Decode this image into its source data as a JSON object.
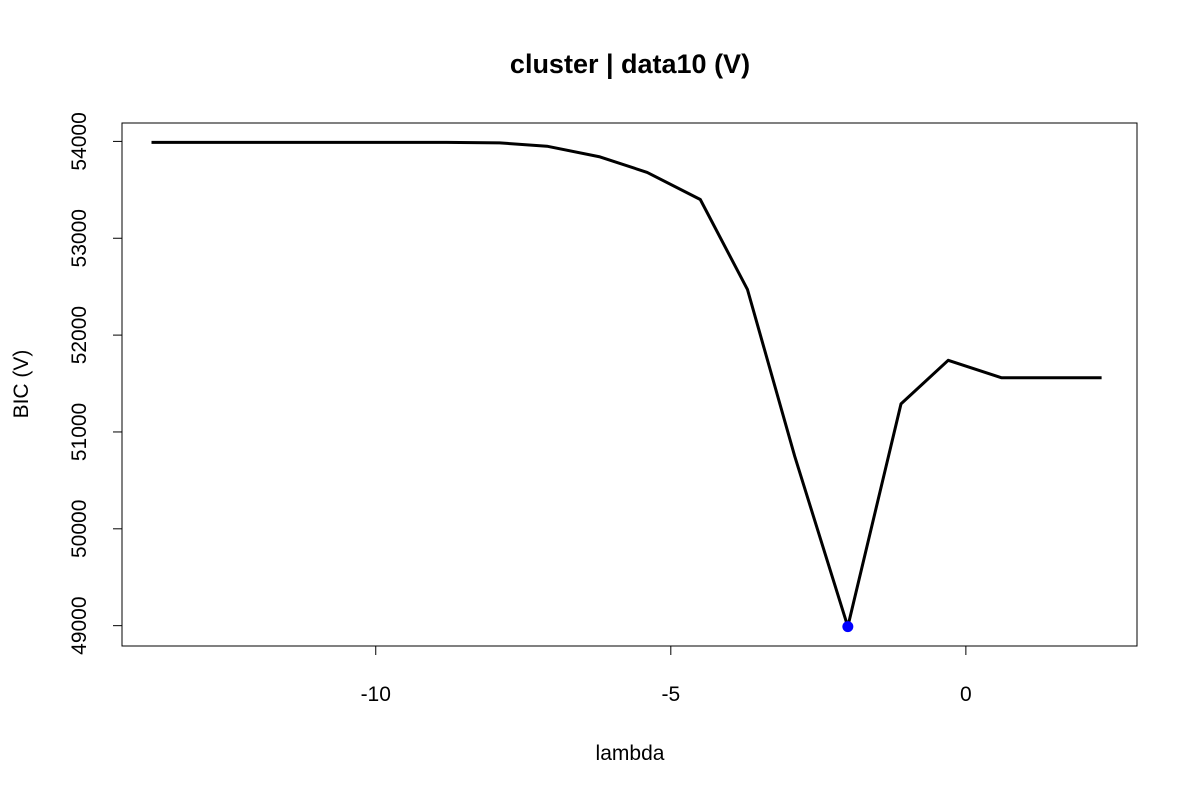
{
  "chart_data": {
    "type": "line",
    "title": "cluster | data10 (V)",
    "xlabel": "lambda",
    "ylabel": "BIC (V)",
    "xlim": [
      -14.3,
      2.9
    ],
    "ylim": [
      48790,
      54190
    ],
    "x_ticks": [
      -10,
      -5,
      0
    ],
    "x_tick_labels": [
      "-10",
      "-5",
      "0"
    ],
    "y_ticks": [
      49000,
      50000,
      51000,
      52000,
      53000,
      54000
    ],
    "y_tick_labels": [
      "49000",
      "50000",
      "51000",
      "52000",
      "53000",
      "54000"
    ],
    "grid": false,
    "legend": "none",
    "series": [
      {
        "x": [
          -13.8,
          -12.9,
          -12.0,
          -11.2,
          -10.4,
          -9.6,
          -8.8,
          -7.9,
          -7.1,
          -6.2,
          -5.4,
          -4.5,
          -3.7,
          -2.9,
          -2.0,
          -1.1,
          -0.3,
          0.6,
          1.4,
          2.3
        ],
        "y": [
          53990,
          53990,
          53990,
          53990,
          53990,
          53990,
          53990,
          53985,
          53950,
          53840,
          53680,
          53400,
          52470,
          50750,
          48990,
          51290,
          51740,
          51560,
          51560,
          51560
        ],
        "color": "#000000"
      }
    ],
    "highlight_point": {
      "x": -2.0,
      "y": 48990,
      "color": "#0000ff"
    }
  }
}
